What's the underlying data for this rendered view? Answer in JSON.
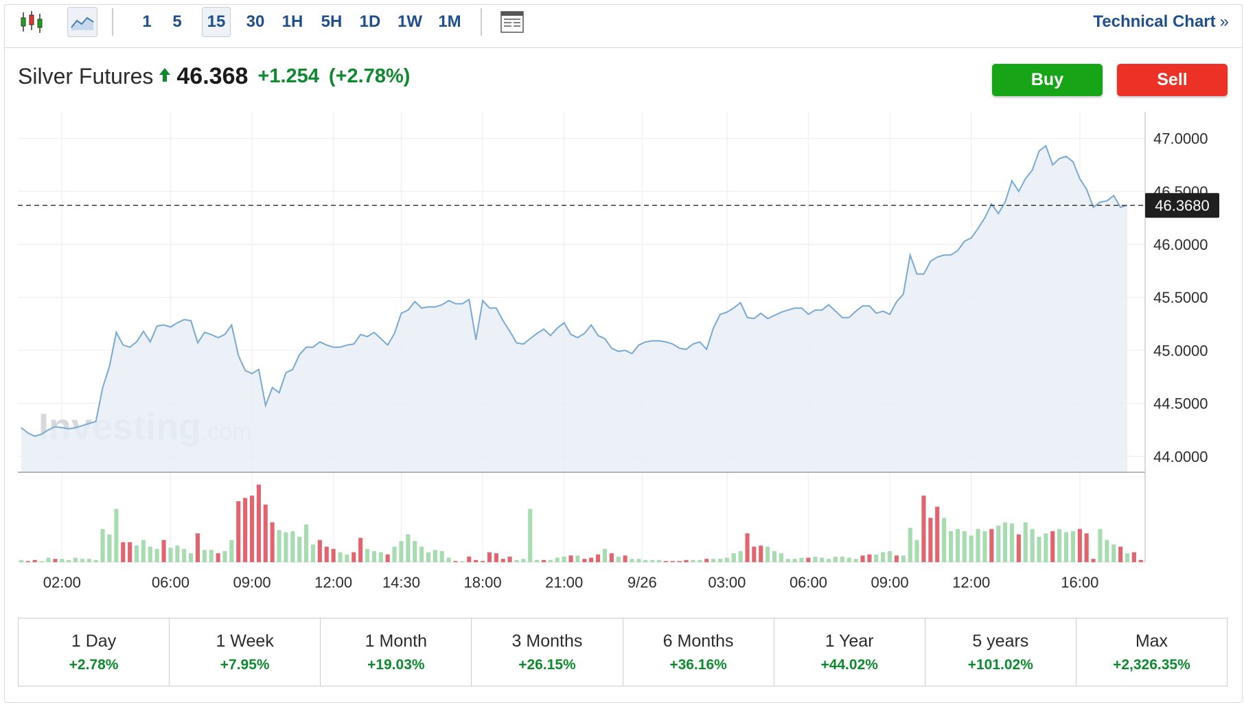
{
  "toolbar": {
    "intervals": [
      "1",
      "5",
      "15",
      "30",
      "1H",
      "5H",
      "1D",
      "1W",
      "1M"
    ],
    "active_interval": "15",
    "technical_chart_label": "Technical Chart",
    "technical_chart_chevron": "»"
  },
  "header": {
    "name": "Silver Futures",
    "price": "46.368",
    "change": "+1.254",
    "change_pct": "(+2.78%)",
    "direction": "up"
  },
  "buttons": {
    "buy": "Buy",
    "sell": "Sell"
  },
  "watermark": {
    "main": "Investing",
    "suffix": ".com"
  },
  "colors": {
    "up": "#0d8a2e",
    "buy": "#17a517",
    "sell": "#ec3127",
    "line": "#78a9d4",
    "area": "#e8eff6",
    "vol_up": "#a6dcb0",
    "vol_down": "#e2646e",
    "accent": "#1f4f8f"
  },
  "chart_data": {
    "type": "area",
    "ylim": [
      43.85,
      47.25
    ],
    "y_ticks": [
      "47.0000",
      "46.5000",
      "46.0000",
      "45.5000",
      "45.0000",
      "44.5000",
      "44.0000"
    ],
    "y_tick_values": [
      47.0,
      46.5,
      46.0,
      45.5,
      45.0,
      44.5,
      44.0
    ],
    "x_ticks": [
      "02:00",
      "06:00",
      "09:00",
      "12:00",
      "14:30",
      "18:00",
      "21:00",
      "9/26",
      "03:00",
      "06:00",
      "09:00",
      "12:00",
      "16:00"
    ],
    "x_tick_index": [
      6,
      22,
      34,
      46,
      56,
      68,
      80,
      91.5,
      104,
      116,
      128,
      140,
      156
    ],
    "last_price_label": "46.3680",
    "last_price": 46.368,
    "grid": true,
    "prices": [
      44.27,
      44.22,
      44.19,
      44.21,
      44.25,
      44.28,
      44.27,
      44.26,
      44.27,
      44.29,
      44.31,
      44.33,
      44.65,
      44.85,
      45.17,
      45.05,
      45.03,
      45.08,
      45.18,
      45.08,
      45.23,
      45.24,
      45.22,
      45.26,
      45.29,
      45.28,
      45.07,
      45.17,
      45.15,
      45.12,
      45.15,
      45.24,
      44.95,
      44.81,
      44.78,
      44.82,
      44.48,
      44.65,
      44.6,
      44.79,
      44.82,
      44.96,
      45.03,
      45.03,
      45.08,
      45.05,
      45.03,
      45.03,
      45.05,
      45.06,
      45.15,
      45.13,
      45.17,
      45.11,
      45.05,
      45.16,
      45.35,
      45.38,
      45.46,
      45.4,
      45.41,
      45.41,
      45.43,
      45.47,
      45.44,
      45.44,
      45.48,
      45.1,
      45.47,
      45.4,
      45.4,
      45.28,
      45.18,
      45.07,
      45.06,
      45.11,
      45.16,
      45.2,
      45.14,
      45.21,
      45.26,
      45.15,
      45.12,
      45.16,
      45.24,
      45.14,
      45.11,
      45.02,
      44.99,
      45.0,
      44.97,
      45.05,
      45.08,
      45.09,
      45.09,
      45.08,
      45.06,
      45.02,
      45.01,
      45.06,
      45.08,
      45.01,
      45.21,
      45.34,
      45.36,
      45.4,
      45.45,
      45.31,
      45.3,
      45.35,
      45.3,
      45.33,
      45.36,
      45.38,
      45.4,
      45.4,
      45.34,
      45.38,
      45.38,
      45.43,
      45.37,
      45.31,
      45.31,
      45.37,
      45.42,
      45.42,
      45.35,
      45.37,
      45.34,
      45.46,
      45.53,
      45.9,
      45.72,
      45.72,
      45.84,
      45.88,
      45.9,
      45.9,
      45.94,
      46.03,
      46.06,
      46.15,
      46.25,
      46.38,
      46.29,
      46.4,
      46.6,
      46.5,
      46.62,
      46.7,
      46.88,
      46.93,
      46.75,
      46.81,
      46.83,
      46.78,
      46.62,
      46.52,
      46.35,
      46.4,
      46.41,
      46.46,
      46.35,
      46.368
    ],
    "volume_up_down": "green = up interval, red = down interval",
    "volumes": [
      2,
      1,
      2,
      1,
      4,
      3,
      3,
      2,
      4,
      3,
      3,
      2,
      30,
      25,
      48,
      18,
      18,
      15,
      20,
      14,
      12,
      20,
      13,
      15,
      12,
      8,
      26,
      11,
      11,
      8,
      10,
      20,
      55,
      58,
      60,
      70,
      52,
      36,
      29,
      27,
      28,
      23,
      34,
      16,
      20,
      14,
      12,
      9,
      7,
      9,
      22,
      12,
      10,
      9,
      7,
      14,
      19,
      25,
      19,
      14,
      9,
      11,
      10,
      4,
      1,
      1,
      5,
      2,
      1,
      9,
      8,
      3,
      5,
      2,
      3,
      48,
      2,
      2,
      2,
      4,
      5,
      6,
      6,
      3,
      4,
      7,
      12,
      8,
      5,
      6,
      3,
      3,
      2,
      2,
      2,
      1,
      1,
      1,
      2,
      2,
      2,
      3,
      3,
      3,
      4,
      8,
      10,
      26,
      14,
      15,
      14,
      10,
      8,
      3,
      3,
      4,
      4,
      5,
      4,
      3,
      5,
      5,
      4,
      3,
      6,
      7,
      7,
      9,
      10,
      6,
      6,
      31,
      20,
      60,
      40,
      50,
      40,
      28,
      30,
      28,
      24,
      30,
      28,
      30,
      33,
      36,
      35,
      25,
      36,
      30,
      23,
      26,
      28,
      30,
      27,
      28,
      30,
      26,
      3,
      30,
      20,
      16,
      14,
      8,
      9,
      2
    ],
    "volume_dir": [
      "u",
      "d",
      "d",
      "u",
      "u",
      "d",
      "u",
      "u",
      "u",
      "u",
      "u",
      "u",
      "u",
      "u",
      "u",
      "d",
      "d",
      "u",
      "u",
      "u",
      "u",
      "d",
      "u",
      "u",
      "u",
      "u",
      "d",
      "u",
      "u",
      "d",
      "u",
      "u",
      "d",
      "d",
      "d",
      "d",
      "d",
      "d",
      "u",
      "u",
      "u",
      "u",
      "u",
      "u",
      "d",
      "d",
      "d",
      "u",
      "u",
      "d",
      "d",
      "u",
      "u",
      "u",
      "d",
      "u",
      "u",
      "u",
      "u",
      "u",
      "u",
      "u",
      "u",
      "u",
      "d",
      "u",
      "d",
      "d",
      "d",
      "d",
      "d",
      "d",
      "d",
      "u",
      "u",
      "u",
      "u",
      "d",
      "u",
      "u",
      "u",
      "d",
      "u",
      "d",
      "d",
      "d",
      "u",
      "d",
      "u",
      "d",
      "u",
      "u",
      "u",
      "u",
      "u",
      "d",
      "d",
      "d",
      "d",
      "u",
      "u",
      "d",
      "u",
      "u",
      "u",
      "u",
      "u",
      "d",
      "d",
      "d",
      "u",
      "u",
      "u",
      "u",
      "u",
      "u",
      "d",
      "u",
      "u",
      "u",
      "u",
      "u",
      "u",
      "u",
      "d",
      "d",
      "u",
      "u",
      "u",
      "d",
      "u",
      "u",
      "u",
      "d",
      "d",
      "d",
      "u",
      "u",
      "u",
      "u",
      "u",
      "u",
      "u",
      "d",
      "u",
      "u",
      "u",
      "d",
      "u",
      "u",
      "u",
      "u",
      "d",
      "u",
      "u",
      "u",
      "d",
      "d",
      "d",
      "u",
      "u",
      "u",
      "d",
      "u"
    ]
  },
  "periods": [
    {
      "label": "1 Day",
      "value": "+2.78%"
    },
    {
      "label": "1 Week",
      "value": "+7.95%"
    },
    {
      "label": "1 Month",
      "value": "+19.03%"
    },
    {
      "label": "3 Months",
      "value": "+26.15%"
    },
    {
      "label": "6 Months",
      "value": "+36.16%"
    },
    {
      "label": "1 Year",
      "value": "+44.02%"
    },
    {
      "label": "5 years",
      "value": "+101.02%"
    },
    {
      "label": "Max",
      "value": "+2,326.35%"
    }
  ]
}
